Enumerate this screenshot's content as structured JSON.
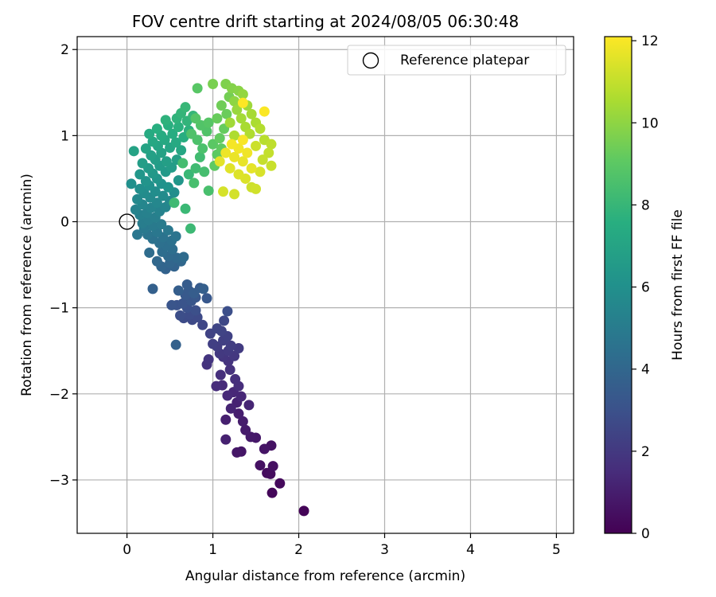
{
  "chart_data": {
    "type": "scatter",
    "title": "FOV centre drift starting at 2024/08/05 06:30:48",
    "xlabel": "Angular distance from reference (arcmin)",
    "ylabel": "Rotation from reference (arcmin)",
    "xlim": [
      -0.58,
      5.2
    ],
    "ylim": [
      -3.62,
      2.15
    ],
    "xticks": [
      0,
      1,
      2,
      3,
      4,
      5
    ],
    "yticks": [
      -3,
      -2,
      -1,
      0,
      1,
      2
    ],
    "grid": true,
    "legend": {
      "label": "Reference platepar",
      "position": "top-right"
    },
    "reference_point": {
      "x": 0,
      "y": 0
    },
    "colorbar": {
      "label": "Hours from first FF file",
      "colormap": "viridis",
      "range": [
        0,
        12.1
      ],
      "ticks": [
        0,
        2,
        4,
        6,
        8,
        10,
        12
      ]
    },
    "points": [
      {
        "x": 2.06,
        "y": -3.36,
        "t": 0.1
      },
      {
        "x": 1.69,
        "y": -3.15,
        "t": 0.2
      },
      {
        "x": 1.78,
        "y": -3.04,
        "t": 0.3
      },
      {
        "x": 1.63,
        "y": -2.92,
        "t": 0.35
      },
      {
        "x": 1.67,
        "y": -2.93,
        "t": 0.4
      },
      {
        "x": 1.7,
        "y": -2.84,
        "t": 0.5
      },
      {
        "x": 1.55,
        "y": -2.83,
        "t": 0.55
      },
      {
        "x": 1.68,
        "y": -2.6,
        "t": 0.6
      },
      {
        "x": 1.6,
        "y": -2.64,
        "t": 0.65
      },
      {
        "x": 1.33,
        "y": -2.67,
        "t": 0.7
      },
      {
        "x": 1.28,
        "y": -2.68,
        "t": 0.75
      },
      {
        "x": 1.5,
        "y": -2.51,
        "t": 0.8
      },
      {
        "x": 1.44,
        "y": -2.5,
        "t": 0.85
      },
      {
        "x": 1.38,
        "y": -2.42,
        "t": 0.9
      },
      {
        "x": 1.35,
        "y": -2.32,
        "t": 0.95
      },
      {
        "x": 1.3,
        "y": -2.23,
        "t": 1.0
      },
      {
        "x": 1.15,
        "y": -2.3,
        "t": 1.05
      },
      {
        "x": 1.15,
        "y": -2.53,
        "t": 1.1
      },
      {
        "x": 1.28,
        "y": -2.1,
        "t": 1.15
      },
      {
        "x": 1.21,
        "y": -2.17,
        "t": 1.2
      },
      {
        "x": 1.42,
        "y": -2.13,
        "t": 1.25
      },
      {
        "x": 1.33,
        "y": -2.03,
        "t": 1.3
      },
      {
        "x": 1.24,
        "y": -1.98,
        "t": 1.35
      },
      {
        "x": 1.17,
        "y": -2.02,
        "t": 1.4
      },
      {
        "x": 1.11,
        "y": -1.9,
        "t": 1.45
      },
      {
        "x": 1.04,
        "y": -1.91,
        "t": 1.5
      },
      {
        "x": 1.3,
        "y": -1.91,
        "t": 1.55
      },
      {
        "x": 1.26,
        "y": -1.83,
        "t": 1.6
      },
      {
        "x": 1.09,
        "y": -1.78,
        "t": 1.65
      },
      {
        "x": 1.2,
        "y": -1.72,
        "t": 1.7
      },
      {
        "x": 0.93,
        "y": -1.66,
        "t": 1.75
      },
      {
        "x": 1.18,
        "y": -1.62,
        "t": 1.8
      },
      {
        "x": 0.95,
        "y": -1.6,
        "t": 1.85
      },
      {
        "x": 1.12,
        "y": -1.57,
        "t": 1.9
      },
      {
        "x": 1.25,
        "y": -1.56,
        "t": 1.95
      },
      {
        "x": 1.08,
        "y": -1.53,
        "t": 2.0
      },
      {
        "x": 1.18,
        "y": -1.5,
        "t": 2.05
      },
      {
        "x": 1.3,
        "y": -1.47,
        "t": 2.1
      },
      {
        "x": 1.05,
        "y": -1.45,
        "t": 2.15
      },
      {
        "x": 1.21,
        "y": -1.44,
        "t": 2.2
      },
      {
        "x": 1.0,
        "y": -1.42,
        "t": 2.25
      },
      {
        "x": 1.12,
        "y": -1.38,
        "t": 2.3
      },
      {
        "x": 1.17,
        "y": -1.33,
        "t": 2.35
      },
      {
        "x": 0.97,
        "y": -1.3,
        "t": 2.4
      },
      {
        "x": 1.1,
        "y": -1.27,
        "t": 2.45
      },
      {
        "x": 1.05,
        "y": -1.24,
        "t": 2.5
      },
      {
        "x": 0.88,
        "y": -1.2,
        "t": 2.55
      },
      {
        "x": 1.13,
        "y": -1.15,
        "t": 2.6
      },
      {
        "x": 0.76,
        "y": -1.14,
        "t": 2.65
      },
      {
        "x": 0.82,
        "y": -1.11,
        "t": 2.7
      },
      {
        "x": 0.66,
        "y": -1.12,
        "t": 2.75
      },
      {
        "x": 0.73,
        "y": -1.08,
        "t": 2.8
      },
      {
        "x": 0.62,
        "y": -1.09,
        "t": 2.85
      },
      {
        "x": 1.17,
        "y": -1.04,
        "t": 2.9
      },
      {
        "x": 0.8,
        "y": -1.03,
        "t": 2.95
      },
      {
        "x": 0.7,
        "y": -1.0,
        "t": 3.0
      },
      {
        "x": 0.58,
        "y": -0.97,
        "t": 3.05
      },
      {
        "x": 0.65,
        "y": -0.95,
        "t": 3.1
      },
      {
        "x": 0.52,
        "y": -0.97,
        "t": 3.15
      },
      {
        "x": 0.75,
        "y": -0.92,
        "t": 3.2
      },
      {
        "x": 0.8,
        "y": -0.88,
        "t": 3.25
      },
      {
        "x": 0.93,
        "y": -0.89,
        "t": 3.3
      },
      {
        "x": 0.68,
        "y": -0.85,
        "t": 3.35
      },
      {
        "x": 0.72,
        "y": -0.8,
        "t": 3.4
      },
      {
        "x": 0.85,
        "y": -0.77,
        "t": 3.45
      },
      {
        "x": 0.7,
        "y": -0.73,
        "t": 3.5
      },
      {
        "x": 0.78,
        "y": -0.83,
        "t": 3.55
      },
      {
        "x": 0.6,
        "y": -0.8,
        "t": 3.6
      },
      {
        "x": 0.89,
        "y": -0.78,
        "t": 3.65
      },
      {
        "x": 0.3,
        "y": -0.78,
        "t": 3.7
      },
      {
        "x": 0.57,
        "y": -1.43,
        "t": 3.75
      },
      {
        "x": 0.45,
        "y": -0.55,
        "t": 3.8
      },
      {
        "x": 0.55,
        "y": -0.52,
        "t": 3.85
      },
      {
        "x": 0.4,
        "y": -0.52,
        "t": 3.9
      },
      {
        "x": 0.5,
        "y": -0.48,
        "t": 3.95
      },
      {
        "x": 0.63,
        "y": -0.46,
        "t": 4.0
      },
      {
        "x": 0.35,
        "y": -0.46,
        "t": 4.05
      },
      {
        "x": 0.58,
        "y": -0.42,
        "t": 4.1
      },
      {
        "x": 0.48,
        "y": -0.4,
        "t": 4.15
      },
      {
        "x": 0.66,
        "y": -0.41,
        "t": 4.2
      },
      {
        "x": 0.26,
        "y": -0.36,
        "t": 4.25
      },
      {
        "x": 0.41,
        "y": -0.35,
        "t": 4.3
      },
      {
        "x": 0.53,
        "y": -0.32,
        "t": 4.35
      },
      {
        "x": 0.46,
        "y": -0.28,
        "t": 4.4
      },
      {
        "x": 0.38,
        "y": -0.25,
        "t": 4.45
      },
      {
        "x": 0.52,
        "y": -0.22,
        "t": 4.5
      },
      {
        "x": 0.3,
        "y": -0.2,
        "t": 4.55
      },
      {
        "x": 0.42,
        "y": -0.18,
        "t": 4.6
      },
      {
        "x": 0.57,
        "y": -0.17,
        "t": 4.65
      },
      {
        "x": 0.24,
        "y": -0.15,
        "t": 4.7
      },
      {
        "x": 0.12,
        "y": -0.15,
        "t": 4.75
      },
      {
        "x": 0.35,
        "y": -0.12,
        "t": 4.8
      },
      {
        "x": 0.48,
        "y": -0.1,
        "t": 4.85
      },
      {
        "x": 0.2,
        "y": -0.08,
        "t": 4.9
      },
      {
        "x": 0.3,
        "y": -0.05,
        "t": 4.95
      },
      {
        "x": 0.4,
        "y": -0.03,
        "t": 5.0
      },
      {
        "x": 0.18,
        "y": -0.02,
        "t": 5.05
      },
      {
        "x": 0.25,
        "y": 0.02,
        "t": 5.1
      },
      {
        "x": 0.33,
        "y": 0.05,
        "t": 5.15
      },
      {
        "x": 0.15,
        "y": 0.08,
        "t": 5.2
      },
      {
        "x": 0.23,
        "y": 0.1,
        "t": 5.25
      },
      {
        "x": 0.38,
        "y": 0.12,
        "t": 5.3
      },
      {
        "x": 0.1,
        "y": 0.14,
        "t": 5.35
      },
      {
        "x": 0.28,
        "y": 0.16,
        "t": 5.4
      },
      {
        "x": 0.45,
        "y": 0.17,
        "t": 5.45
      },
      {
        "x": 0.18,
        "y": 0.2,
        "t": 5.5
      },
      {
        "x": 0.35,
        "y": 0.22,
        "t": 5.55
      },
      {
        "x": 0.5,
        "y": 0.24,
        "t": 5.6
      },
      {
        "x": 0.12,
        "y": 0.26,
        "t": 5.65
      },
      {
        "x": 0.27,
        "y": 0.28,
        "t": 5.7
      },
      {
        "x": 0.42,
        "y": 0.3,
        "t": 5.75
      },
      {
        "x": 0.2,
        "y": 0.33,
        "t": 5.8
      },
      {
        "x": 0.33,
        "y": 0.35,
        "t": 5.85
      },
      {
        "x": 0.55,
        "y": 0.34,
        "t": 5.9
      },
      {
        "x": 0.15,
        "y": 0.38,
        "t": 5.95
      },
      {
        "x": 0.05,
        "y": 0.44,
        "t": 6.0
      },
      {
        "x": 0.26,
        "y": 0.42,
        "t": 6.05
      },
      {
        "x": 0.4,
        "y": 0.44,
        "t": 6.1
      },
      {
        "x": 0.48,
        "y": 0.4,
        "t": 6.15
      },
      {
        "x": 0.22,
        "y": 0.47,
        "t": 6.2
      },
      {
        "x": 0.35,
        "y": 0.5,
        "t": 6.25
      },
      {
        "x": 0.6,
        "y": 0.48,
        "t": 6.3
      },
      {
        "x": 0.15,
        "y": 0.55,
        "t": 6.35
      },
      {
        "x": 0.3,
        "y": 0.56,
        "t": 6.4
      },
      {
        "x": 0.45,
        "y": 0.58,
        "t": 6.45
      },
      {
        "x": 0.25,
        "y": 0.62,
        "t": 6.5
      },
      {
        "x": 0.38,
        "y": 0.65,
        "t": 6.55
      },
      {
        "x": 0.52,
        "y": 0.63,
        "t": 6.6
      },
      {
        "x": 0.18,
        "y": 0.68,
        "t": 6.65
      },
      {
        "x": 0.33,
        "y": 0.72,
        "t": 6.7
      },
      {
        "x": 0.46,
        "y": 0.7,
        "t": 6.75
      },
      {
        "x": 0.58,
        "y": 0.72,
        "t": 6.8
      },
      {
        "x": 0.28,
        "y": 0.77,
        "t": 6.85
      },
      {
        "x": 0.4,
        "y": 0.8,
        "t": 6.9
      },
      {
        "x": 0.08,
        "y": 0.82,
        "t": 6.95
      },
      {
        "x": 0.22,
        "y": 0.85,
        "t": 7.0
      },
      {
        "x": 0.36,
        "y": 0.88,
        "t": 7.05
      },
      {
        "x": 0.5,
        "y": 0.86,
        "t": 7.1
      },
      {
        "x": 0.63,
        "y": 0.83,
        "t": 7.15
      },
      {
        "x": 0.3,
        "y": 0.93,
        "t": 7.2
      },
      {
        "x": 0.44,
        "y": 0.95,
        "t": 7.25
      },
      {
        "x": 0.57,
        "y": 0.92,
        "t": 7.3
      },
      {
        "x": 0.26,
        "y": 1.02,
        "t": 7.35
      },
      {
        "x": 0.4,
        "y": 1.0,
        "t": 7.4
      },
      {
        "x": 0.53,
        "y": 1.02,
        "t": 7.45
      },
      {
        "x": 0.66,
        "y": 0.98,
        "t": 7.5
      },
      {
        "x": 0.35,
        "y": 1.08,
        "t": 7.55
      },
      {
        "x": 0.48,
        "y": 1.12,
        "t": 7.6
      },
      {
        "x": 0.6,
        "y": 1.1,
        "t": 7.65
      },
      {
        "x": 0.72,
        "y": 1.06,
        "t": 7.7
      },
      {
        "x": 0.45,
        "y": 1.18,
        "t": 7.75
      },
      {
        "x": 0.58,
        "y": 1.2,
        "t": 7.8
      },
      {
        "x": 0.7,
        "y": 1.17,
        "t": 7.85
      },
      {
        "x": 0.63,
        "y": 1.26,
        "t": 7.9
      },
      {
        "x": 0.77,
        "y": 1.23,
        "t": 7.95
      },
      {
        "x": 0.68,
        "y": 1.33,
        "t": 8.0
      },
      {
        "x": 0.72,
        "y": 0.55,
        "t": 8.05
      },
      {
        "x": 0.68,
        "y": 0.15,
        "t": 8.1
      },
      {
        "x": 0.74,
        "y": -0.08,
        "t": 8.15
      },
      {
        "x": 0.55,
        "y": 0.22,
        "t": 8.2
      },
      {
        "x": 0.8,
        "y": 0.62,
        "t": 8.25
      },
      {
        "x": 0.85,
        "y": 0.75,
        "t": 8.3
      },
      {
        "x": 0.65,
        "y": 0.68,
        "t": 8.35
      },
      {
        "x": 0.9,
        "y": 0.58,
        "t": 8.4
      },
      {
        "x": 0.78,
        "y": 0.45,
        "t": 8.45
      },
      {
        "x": 0.95,
        "y": 0.36,
        "t": 8.5
      },
      {
        "x": 0.88,
        "y": 0.85,
        "t": 8.55
      },
      {
        "x": 0.82,
        "y": 0.95,
        "t": 8.6
      },
      {
        "x": 0.75,
        "y": 1.02,
        "t": 8.65
      },
      {
        "x": 0.93,
        "y": 1.05,
        "t": 8.7
      },
      {
        "x": 0.86,
        "y": 1.12,
        "t": 8.75
      },
      {
        "x": 0.8,
        "y": 1.2,
        "t": 8.8
      },
      {
        "x": 0.95,
        "y": 1.15,
        "t": 8.85
      },
      {
        "x": 0.82,
        "y": 1.55,
        "t": 8.9
      },
      {
        "x": 1.0,
        "y": 0.9,
        "t": 8.95
      },
      {
        "x": 1.05,
        "y": 0.78,
        "t": 9.0
      },
      {
        "x": 1.02,
        "y": 0.65,
        "t": 9.05
      },
      {
        "x": 1.1,
        "y": 0.85,
        "t": 9.1
      },
      {
        "x": 1.08,
        "y": 0.97,
        "t": 9.15
      },
      {
        "x": 1.13,
        "y": 1.08,
        "t": 9.2
      },
      {
        "x": 1.05,
        "y": 1.2,
        "t": 9.25
      },
      {
        "x": 1.16,
        "y": 1.25,
        "t": 9.3
      },
      {
        "x": 1.1,
        "y": 1.35,
        "t": 9.4
      },
      {
        "x": 1.19,
        "y": 1.45,
        "t": 9.5
      },
      {
        "x": 1.0,
        "y": 1.6,
        "t": 9.6
      },
      {
        "x": 1.15,
        "y": 1.6,
        "t": 9.7
      },
      {
        "x": 1.22,
        "y": 1.55,
        "t": 9.8
      },
      {
        "x": 1.3,
        "y": 1.52,
        "t": 9.9
      },
      {
        "x": 1.25,
        "y": 1.4,
        "t": 10.0
      },
      {
        "x": 1.35,
        "y": 1.48,
        "t": 10.1
      },
      {
        "x": 1.28,
        "y": 1.3,
        "t": 10.2
      },
      {
        "x": 1.4,
        "y": 1.35,
        "t": 10.3
      },
      {
        "x": 1.2,
        "y": 1.15,
        "t": 10.35
      },
      {
        "x": 1.33,
        "y": 1.2,
        "t": 10.4
      },
      {
        "x": 1.45,
        "y": 1.25,
        "t": 10.45
      },
      {
        "x": 1.38,
        "y": 1.1,
        "t": 10.5
      },
      {
        "x": 1.5,
        "y": 1.15,
        "t": 10.55
      },
      {
        "x": 1.25,
        "y": 1.0,
        "t": 10.6
      },
      {
        "x": 1.43,
        "y": 1.02,
        "t": 10.65
      },
      {
        "x": 1.55,
        "y": 1.08,
        "t": 10.7
      },
      {
        "x": 1.6,
        "y": 0.95,
        "t": 10.8
      },
      {
        "x": 1.68,
        "y": 0.9,
        "t": 10.9
      },
      {
        "x": 1.65,
        "y": 0.8,
        "t": 11.0
      },
      {
        "x": 1.58,
        "y": 0.72,
        "t": 11.05
      },
      {
        "x": 1.68,
        "y": 0.65,
        "t": 11.1
      },
      {
        "x": 1.5,
        "y": 0.88,
        "t": 11.15
      },
      {
        "x": 1.45,
        "y": 0.4,
        "t": 11.2
      },
      {
        "x": 1.5,
        "y": 0.38,
        "t": 11.25
      },
      {
        "x": 1.25,
        "y": 0.32,
        "t": 11.3
      },
      {
        "x": 1.12,
        "y": 0.35,
        "t": 11.35
      },
      {
        "x": 1.55,
        "y": 0.58,
        "t": 11.4
      },
      {
        "x": 1.38,
        "y": 0.5,
        "t": 11.45
      },
      {
        "x": 1.3,
        "y": 0.55,
        "t": 11.5
      },
      {
        "x": 1.2,
        "y": 0.62,
        "t": 11.55
      },
      {
        "x": 1.08,
        "y": 0.7,
        "t": 11.6
      },
      {
        "x": 1.45,
        "y": 0.62,
        "t": 11.65
      },
      {
        "x": 1.35,
        "y": 0.7,
        "t": 11.7
      },
      {
        "x": 1.25,
        "y": 0.75,
        "t": 11.75
      },
      {
        "x": 1.15,
        "y": 0.8,
        "t": 11.8
      },
      {
        "x": 1.4,
        "y": 0.8,
        "t": 11.85
      },
      {
        "x": 1.3,
        "y": 0.85,
        "t": 11.9
      },
      {
        "x": 1.22,
        "y": 0.9,
        "t": 11.95
      },
      {
        "x": 1.35,
        "y": 0.95,
        "t": 12.0
      },
      {
        "x": 1.6,
        "y": 1.28,
        "t": 12.05
      },
      {
        "x": 1.35,
        "y": 1.38,
        "t": 12.1
      }
    ]
  }
}
